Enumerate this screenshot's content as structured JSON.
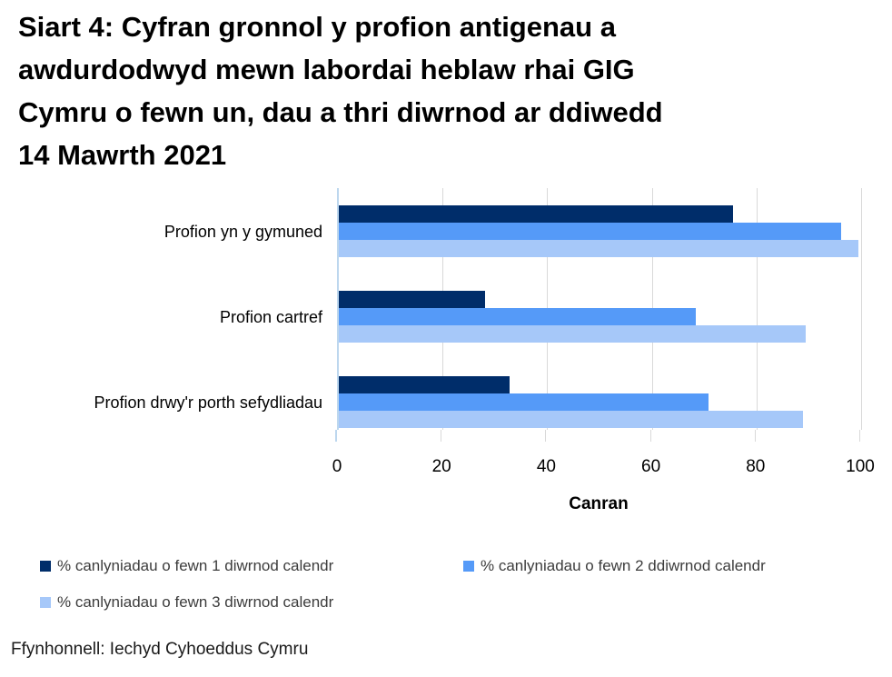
{
  "title": "Siart 4: Cyfran gronnol y profion antigenau a\nawdurdodwyd mewn labordai heblaw rhai GIG\nCymru o fewn un, dau a thri diwrnod ar ddiwedd\n14 Mawrth 2021",
  "footer": {
    "source": "Ffynhonnell: Iechyd Cyhoeddus Cymru"
  },
  "chart_data": {
    "type": "bar",
    "orientation": "horizontal",
    "title": "Siart 4: Cyfran gronnol y profion antigenau a awdurdodwyd mewn labordai heblaw rhai GIG Cymru o fewn un, dau a thri diwrnod ar ddiwedd 14 Mawrth 2021",
    "categories": [
      "Profion yn y gymuned",
      "Profion cartref",
      "Profion drwy'r porth sefydliadau"
    ],
    "series": [
      {
        "name": "% canlyniadau o fewn 1 diwrnod calendr",
        "color": "#002D6A",
        "values": [
          75.4,
          27.9,
          32.6
        ]
      },
      {
        "name": "% canlyniadau o fewn 2 ddiwrnod calendr",
        "color": "#559AF8",
        "values": [
          96.0,
          68.3,
          70.6
        ]
      },
      {
        "name": "% canlyniadau o fewn 3 diwrnod calendr",
        "color": "#A6C8F9",
        "values": [
          99.3,
          89.2,
          88.7
        ]
      }
    ],
    "xlabel": "Canran",
    "ylabel": "",
    "x_ticks": [
      0,
      20,
      40,
      60,
      80,
      100
    ],
    "xlim": [
      0,
      100
    ],
    "grid": "vertical",
    "legend_position": "bottom",
    "axis_line_color": "#BDD7EE",
    "gridline_color": "#D9D9D9",
    "text_color": "#000000"
  }
}
